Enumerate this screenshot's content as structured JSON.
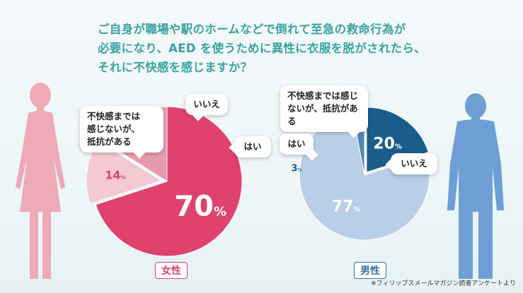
{
  "question": {
    "line1": "ご自身が職場や駅のホームなどで倒れて至急の救命行為が",
    "line2": "必要になり、AED を使うために異性に衣服を脱がされたら、",
    "line3": "それに不快感を感じますか？"
  },
  "colors": {
    "female_main": "#e0426e",
    "female_mid": "#e69aae",
    "female_light": "#f3c9d3",
    "male_dark": "#1a5c8a",
    "male_mid": "#4f86b6",
    "male_light": "#b9cfe8",
    "question": "#3aa3a0"
  },
  "chart_data": [
    {
      "type": "pie",
      "group": "女性",
      "slices": [
        {
          "label": "不快感までは感じないが、抵抗がある",
          "value": 70,
          "display": "70%"
        },
        {
          "label": "いいえ",
          "value": 14,
          "display": "14%"
        },
        {
          "label": "はい",
          "value": 16,
          "display": "16%"
        }
      ]
    },
    {
      "type": "pie",
      "group": "男性",
      "slices": [
        {
          "label": "不快感までは感じないが、抵抗がある",
          "value": 20,
          "display": "20%"
        },
        {
          "label": "いいえ",
          "value": 77,
          "display": "77%"
        },
        {
          "label": "はい",
          "value": 3,
          "display": "3%"
        }
      ]
    }
  ],
  "labels": {
    "female_neutral": "不快感までは\n感じないが、\n抵抗がある",
    "female_no": "いいえ",
    "female_yes": "はい",
    "male_neutral": "不快感までは感じ\nないが、抵抗がある",
    "male_yes": "はい",
    "male_no": "いいえ"
  },
  "gender": {
    "female": "女性",
    "male": "男性"
  },
  "source": "※フィリップスメールマガジン読者アンケートより"
}
